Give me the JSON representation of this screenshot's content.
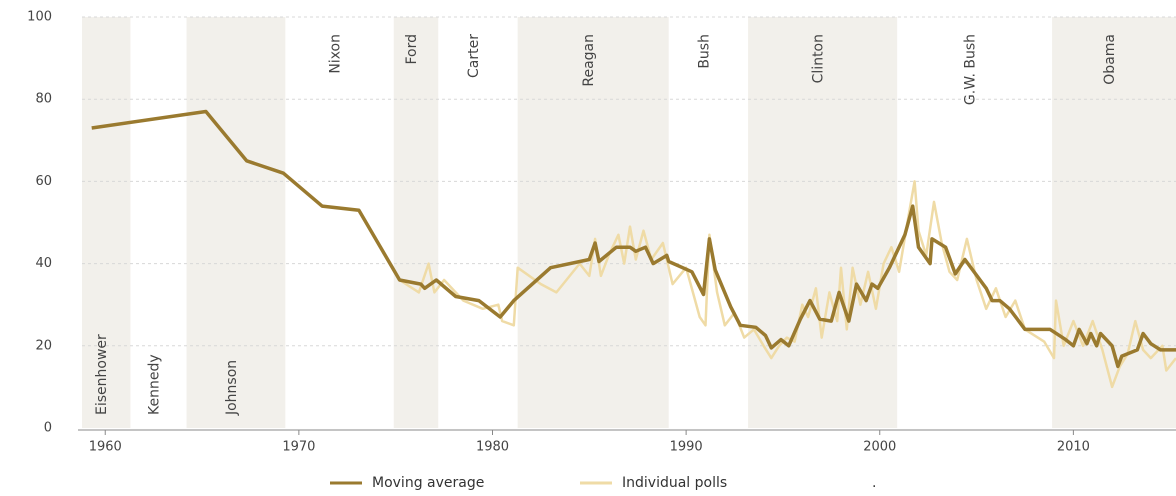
{
  "chart_data": {
    "type": "line",
    "xlim": [
      1958.8,
      2015.3
    ],
    "ylim": [
      0,
      100
    ],
    "xticks": [
      1960,
      1970,
      1980,
      1990,
      2000,
      2010
    ],
    "yticks": [
      0,
      20,
      40,
      60,
      80,
      100
    ],
    "grid": true,
    "legend_position": "bottom",
    "legend_extra": ".",
    "eras": [
      {
        "name": "Eisenhower",
        "start": 1953,
        "end": 1961.3,
        "color": "#c8463a",
        "shaded": true
      },
      {
        "name": "Kennedy",
        "start": 1961.3,
        "end": 1964.2,
        "color": "#44667f",
        "shaded": false
      },
      {
        "name": "Johnson",
        "start": 1964.2,
        "end": 1969.3,
        "color": "#44667f",
        "shaded": true
      },
      {
        "name": "Nixon",
        "start": 1969.3,
        "end": 1974.9,
        "color": "#c8463a",
        "shaded": false
      },
      {
        "name": "Ford",
        "start": 1974.9,
        "end": 1977.2,
        "color": "#c8463a",
        "shaded": true
      },
      {
        "name": "Carter",
        "start": 1977.2,
        "end": 1981.3,
        "color": "#44667f",
        "shaded": false
      },
      {
        "name": "Reagan",
        "start": 1981.3,
        "end": 1989.1,
        "color": "#c8463a",
        "shaded": true
      },
      {
        "name": "Bush",
        "start": 1989.1,
        "end": 1993.2,
        "color": "#c8463a",
        "shaded": false
      },
      {
        "name": "Clinton",
        "start": 1993.2,
        "end": 2000.9,
        "color": "#44667f",
        "shaded": true
      },
      {
        "name": "G.W. Bush",
        "start": 2000.9,
        "end": 2008.9,
        "color": "#c8463a",
        "shaded": false
      },
      {
        "name": "Obama",
        "start": 2008.9,
        "end": 2017,
        "color": "#44667f",
        "shaded": true
      }
    ],
    "series": [
      {
        "name": "Individual polls",
        "color": "#efdba6",
        "width": 2.5,
        "x": [
          1975.2,
          1976.2,
          1976.7,
          1977,
          1977.5,
          1978.5,
          1979.5,
          1980.3,
          1980.5,
          1981.1,
          1981.3,
          1982.5,
          1983.3,
          1984.5,
          1985,
          1985.3,
          1985.6,
          1986,
          1986.5,
          1986.8,
          1987.1,
          1987.4,
          1987.8,
          1988.2,
          1988.8,
          1989.3,
          1990,
          1990.7,
          1991,
          1991.2,
          1991.6,
          1992,
          1992.5,
          1993,
          1993.5,
          1994,
          1994.4,
          1994.8,
          1995.2,
          1995.6,
          1996,
          1996.3,
          1996.7,
          1997,
          1997.4,
          1997.8,
          1998,
          1998.3,
          1998.6,
          1999,
          1999.4,
          1999.8,
          2000.2,
          2000.6,
          2001,
          2001.5,
          2001.8,
          2002,
          2002.4,
          2002.8,
          2003.2,
          2003.6,
          2004,
          2004.5,
          2005,
          2005.5,
          2006,
          2006.5,
          2007,
          2007.5,
          2008.5,
          2009,
          2009.1,
          2009.5,
          2010,
          2010.5,
          2011,
          2011.5,
          2012,
          2012.4,
          2012.8,
          2013.2,
          2013.6,
          2014,
          2014.6,
          2014.8,
          2015.3
        ],
        "values": [
          36,
          33,
          40,
          33,
          36,
          31,
          29,
          30,
          26,
          25,
          39,
          35,
          33,
          40,
          37,
          46,
          37,
          42,
          47,
          40,
          49,
          41,
          48,
          41,
          45,
          35,
          39,
          27,
          25,
          47,
          33,
          25,
          28,
          22,
          24,
          20,
          17,
          20,
          22,
          21,
          30,
          27,
          34,
          22,
          33,
          26,
          39,
          24,
          39,
          30,
          38,
          29,
          40,
          44,
          38,
          52,
          60,
          48,
          42,
          55,
          45,
          38,
          36,
          46,
          36,
          29,
          34,
          27,
          31,
          24,
          21,
          17,
          31,
          20,
          26,
          20,
          26,
          19,
          10,
          15,
          18,
          26,
          19,
          17,
          20,
          14,
          17
        ]
      },
      {
        "name": "Moving average",
        "color": "#9a7a2f",
        "width": 3.5,
        "x": [
          1959.3,
          1965.2,
          1967.3,
          1969.2,
          1971.2,
          1973.1,
          1975.2,
          1976.3,
          1976.5,
          1977.1,
          1978.1,
          1979.3,
          1980.4,
          1981.1,
          1983,
          1985,
          1985.3,
          1985.5,
          1986.4,
          1987.1,
          1987.4,
          1987.9,
          1988.3,
          1989,
          1989.1,
          1990.3,
          1990.9,
          1991.2,
          1991.5,
          1992.3,
          1992.8,
          1993.6,
          1994.1,
          1994.4,
          1994.9,
          1995.3,
          1995.9,
          1996.4,
          1996.9,
          1997.5,
          1997.9,
          1998.4,
          1998.8,
          1999.3,
          1999.6,
          1999.9,
          2000.5,
          2000.8,
          2001.3,
          2001.7,
          2002,
          2002.6,
          2002.7,
          2003.4,
          2003.9,
          2004.4,
          2005.5,
          2005.8,
          2006.2,
          2006.7,
          2007.5,
          2008.8,
          2009.6,
          2010,
          2010.3,
          2010.7,
          2010.9,
          2011.2,
          2011.4,
          2012,
          2012.3,
          2012.5,
          2013.3,
          2013.6,
          2014,
          2014.5,
          2015.3
        ],
        "values": [
          73,
          77,
          65,
          62,
          54,
          53,
          36,
          35,
          34,
          36,
          32,
          31,
          27,
          31,
          39,
          41,
          45,
          40.5,
          44,
          44,
          43,
          44,
          40,
          42,
          40.5,
          38,
          32.5,
          46,
          38.5,
          29.5,
          25,
          24.5,
          22.5,
          19.5,
          21.5,
          20,
          26.5,
          31,
          26.5,
          26,
          33,
          26,
          35,
          31,
          35,
          34,
          39,
          42,
          47,
          54,
          44,
          40,
          46,
          44,
          37.5,
          41,
          34,
          31,
          31,
          29,
          24,
          24,
          21.5,
          20,
          24,
          20.5,
          23,
          20,
          23,
          20,
          15,
          17.5,
          19,
          23,
          20.5,
          19,
          19
        ]
      }
    ]
  }
}
